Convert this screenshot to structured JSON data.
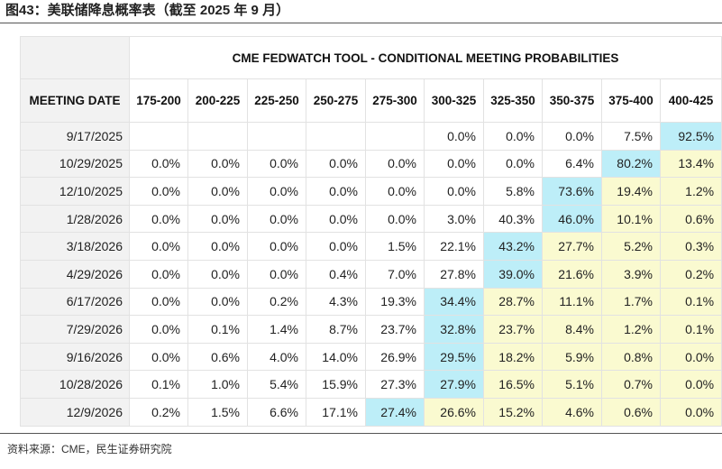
{
  "figure_title": "图43：美联储降息概率表（截至 2025 年 9 月）",
  "source_note": "资料来源：CME，民生证券研究院",
  "colors": {
    "highest": "#bdeef8",
    "above_highest": "#fafad0",
    "date_column": "#f2f2f2"
  },
  "chart_data": {
    "type": "table",
    "title": "CME FEDWATCH TOOL - CONDITIONAL MEETING PROBABILITIES",
    "row_header_label": "MEETING DATE",
    "columns": [
      "175-200",
      "200-225",
      "225-250",
      "250-275",
      "275-300",
      "300-325",
      "325-350",
      "350-375",
      "375-400",
      "400-425"
    ],
    "rows": [
      {
        "date": "9/17/2025",
        "values": [
          "",
          "",
          "",
          "",
          "",
          "0.0%",
          "0.0%",
          "0.0%",
          "7.5%",
          "92.5%"
        ]
      },
      {
        "date": "10/29/2025",
        "values": [
          "0.0%",
          "0.0%",
          "0.0%",
          "0.0%",
          "0.0%",
          "0.0%",
          "0.0%",
          "6.4%",
          "80.2%",
          "13.4%"
        ]
      },
      {
        "date": "12/10/2025",
        "values": [
          "0.0%",
          "0.0%",
          "0.0%",
          "0.0%",
          "0.0%",
          "0.0%",
          "5.8%",
          "73.6%",
          "19.4%",
          "1.2%"
        ]
      },
      {
        "date": "1/28/2026",
        "values": [
          "0.0%",
          "0.0%",
          "0.0%",
          "0.0%",
          "0.0%",
          "3.0%",
          "40.3%",
          "46.0%",
          "10.1%",
          "0.6%"
        ]
      },
      {
        "date": "3/18/2026",
        "values": [
          "0.0%",
          "0.0%",
          "0.0%",
          "0.0%",
          "1.5%",
          "22.1%",
          "43.2%",
          "27.7%",
          "5.2%",
          "0.3%"
        ]
      },
      {
        "date": "4/29/2026",
        "values": [
          "0.0%",
          "0.0%",
          "0.0%",
          "0.4%",
          "7.0%",
          "27.8%",
          "39.0%",
          "21.6%",
          "3.9%",
          "0.2%"
        ]
      },
      {
        "date": "6/17/2026",
        "values": [
          "0.0%",
          "0.0%",
          "0.2%",
          "4.3%",
          "19.3%",
          "34.4%",
          "28.7%",
          "11.1%",
          "1.7%",
          "0.1%"
        ]
      },
      {
        "date": "7/29/2026",
        "values": [
          "0.0%",
          "0.1%",
          "1.4%",
          "8.7%",
          "23.7%",
          "32.8%",
          "23.7%",
          "8.4%",
          "1.2%",
          "0.1%"
        ]
      },
      {
        "date": "9/16/2026",
        "values": [
          "0.0%",
          "0.6%",
          "4.0%",
          "14.0%",
          "26.9%",
          "29.5%",
          "18.2%",
          "5.9%",
          "0.8%",
          "0.0%"
        ]
      },
      {
        "date": "10/28/2026",
        "values": [
          "0.1%",
          "1.0%",
          "5.4%",
          "15.9%",
          "27.3%",
          "27.9%",
          "16.5%",
          "5.1%",
          "0.7%",
          "0.0%"
        ]
      },
      {
        "date": "12/9/2026",
        "values": [
          "0.2%",
          "1.5%",
          "6.6%",
          "17.1%",
          "27.4%",
          "26.6%",
          "15.2%",
          "4.6%",
          "0.6%",
          "0.0%"
        ]
      }
    ]
  }
}
